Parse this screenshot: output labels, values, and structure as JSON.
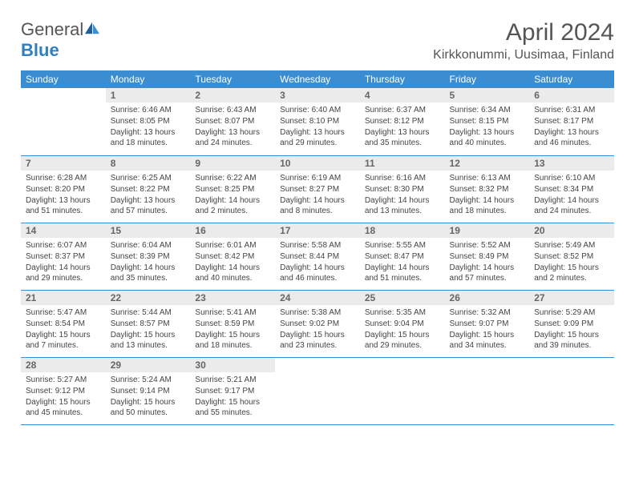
{
  "brand": {
    "text_gray": "General",
    "text_blue": "Blue"
  },
  "title": "April 2024",
  "location": "Kirkkonummi, Uusimaa, Finland",
  "colors": {
    "header_bg": "#3b8dd1",
    "header_text": "#ffffff",
    "daynum_bg": "#ebebeb",
    "daynum_text": "#666666",
    "body_text": "#444444",
    "border": "#3b8dd1",
    "title_text": "#555555"
  },
  "weekday_labels": [
    "Sunday",
    "Monday",
    "Tuesday",
    "Wednesday",
    "Thursday",
    "Friday",
    "Saturday"
  ],
  "start_offset": 1,
  "days": [
    {
      "n": 1,
      "sr": "6:46 AM",
      "ss": "8:05 PM",
      "dl": "13 hours and 18 minutes."
    },
    {
      "n": 2,
      "sr": "6:43 AM",
      "ss": "8:07 PM",
      "dl": "13 hours and 24 minutes."
    },
    {
      "n": 3,
      "sr": "6:40 AM",
      "ss": "8:10 PM",
      "dl": "13 hours and 29 minutes."
    },
    {
      "n": 4,
      "sr": "6:37 AM",
      "ss": "8:12 PM",
      "dl": "13 hours and 35 minutes."
    },
    {
      "n": 5,
      "sr": "6:34 AM",
      "ss": "8:15 PM",
      "dl": "13 hours and 40 minutes."
    },
    {
      "n": 6,
      "sr": "6:31 AM",
      "ss": "8:17 PM",
      "dl": "13 hours and 46 minutes."
    },
    {
      "n": 7,
      "sr": "6:28 AM",
      "ss": "8:20 PM",
      "dl": "13 hours and 51 minutes."
    },
    {
      "n": 8,
      "sr": "6:25 AM",
      "ss": "8:22 PM",
      "dl": "13 hours and 57 minutes."
    },
    {
      "n": 9,
      "sr": "6:22 AM",
      "ss": "8:25 PM",
      "dl": "14 hours and 2 minutes."
    },
    {
      "n": 10,
      "sr": "6:19 AM",
      "ss": "8:27 PM",
      "dl": "14 hours and 8 minutes."
    },
    {
      "n": 11,
      "sr": "6:16 AM",
      "ss": "8:30 PM",
      "dl": "14 hours and 13 minutes."
    },
    {
      "n": 12,
      "sr": "6:13 AM",
      "ss": "8:32 PM",
      "dl": "14 hours and 18 minutes."
    },
    {
      "n": 13,
      "sr": "6:10 AM",
      "ss": "8:34 PM",
      "dl": "14 hours and 24 minutes."
    },
    {
      "n": 14,
      "sr": "6:07 AM",
      "ss": "8:37 PM",
      "dl": "14 hours and 29 minutes."
    },
    {
      "n": 15,
      "sr": "6:04 AM",
      "ss": "8:39 PM",
      "dl": "14 hours and 35 minutes."
    },
    {
      "n": 16,
      "sr": "6:01 AM",
      "ss": "8:42 PM",
      "dl": "14 hours and 40 minutes."
    },
    {
      "n": 17,
      "sr": "5:58 AM",
      "ss": "8:44 PM",
      "dl": "14 hours and 46 minutes."
    },
    {
      "n": 18,
      "sr": "5:55 AM",
      "ss": "8:47 PM",
      "dl": "14 hours and 51 minutes."
    },
    {
      "n": 19,
      "sr": "5:52 AM",
      "ss": "8:49 PM",
      "dl": "14 hours and 57 minutes."
    },
    {
      "n": 20,
      "sr": "5:49 AM",
      "ss": "8:52 PM",
      "dl": "15 hours and 2 minutes."
    },
    {
      "n": 21,
      "sr": "5:47 AM",
      "ss": "8:54 PM",
      "dl": "15 hours and 7 minutes."
    },
    {
      "n": 22,
      "sr": "5:44 AM",
      "ss": "8:57 PM",
      "dl": "15 hours and 13 minutes."
    },
    {
      "n": 23,
      "sr": "5:41 AM",
      "ss": "8:59 PM",
      "dl": "15 hours and 18 minutes."
    },
    {
      "n": 24,
      "sr": "5:38 AM",
      "ss": "9:02 PM",
      "dl": "15 hours and 23 minutes."
    },
    {
      "n": 25,
      "sr": "5:35 AM",
      "ss": "9:04 PM",
      "dl": "15 hours and 29 minutes."
    },
    {
      "n": 26,
      "sr": "5:32 AM",
      "ss": "9:07 PM",
      "dl": "15 hours and 34 minutes."
    },
    {
      "n": 27,
      "sr": "5:29 AM",
      "ss": "9:09 PM",
      "dl": "15 hours and 39 minutes."
    },
    {
      "n": 28,
      "sr": "5:27 AM",
      "ss": "9:12 PM",
      "dl": "15 hours and 45 minutes."
    },
    {
      "n": 29,
      "sr": "5:24 AM",
      "ss": "9:14 PM",
      "dl": "15 hours and 50 minutes."
    },
    {
      "n": 30,
      "sr": "5:21 AM",
      "ss": "9:17 PM",
      "dl": "15 hours and 55 minutes."
    }
  ],
  "labels": {
    "sunrise": "Sunrise:",
    "sunset": "Sunset:",
    "daylight": "Daylight:"
  }
}
